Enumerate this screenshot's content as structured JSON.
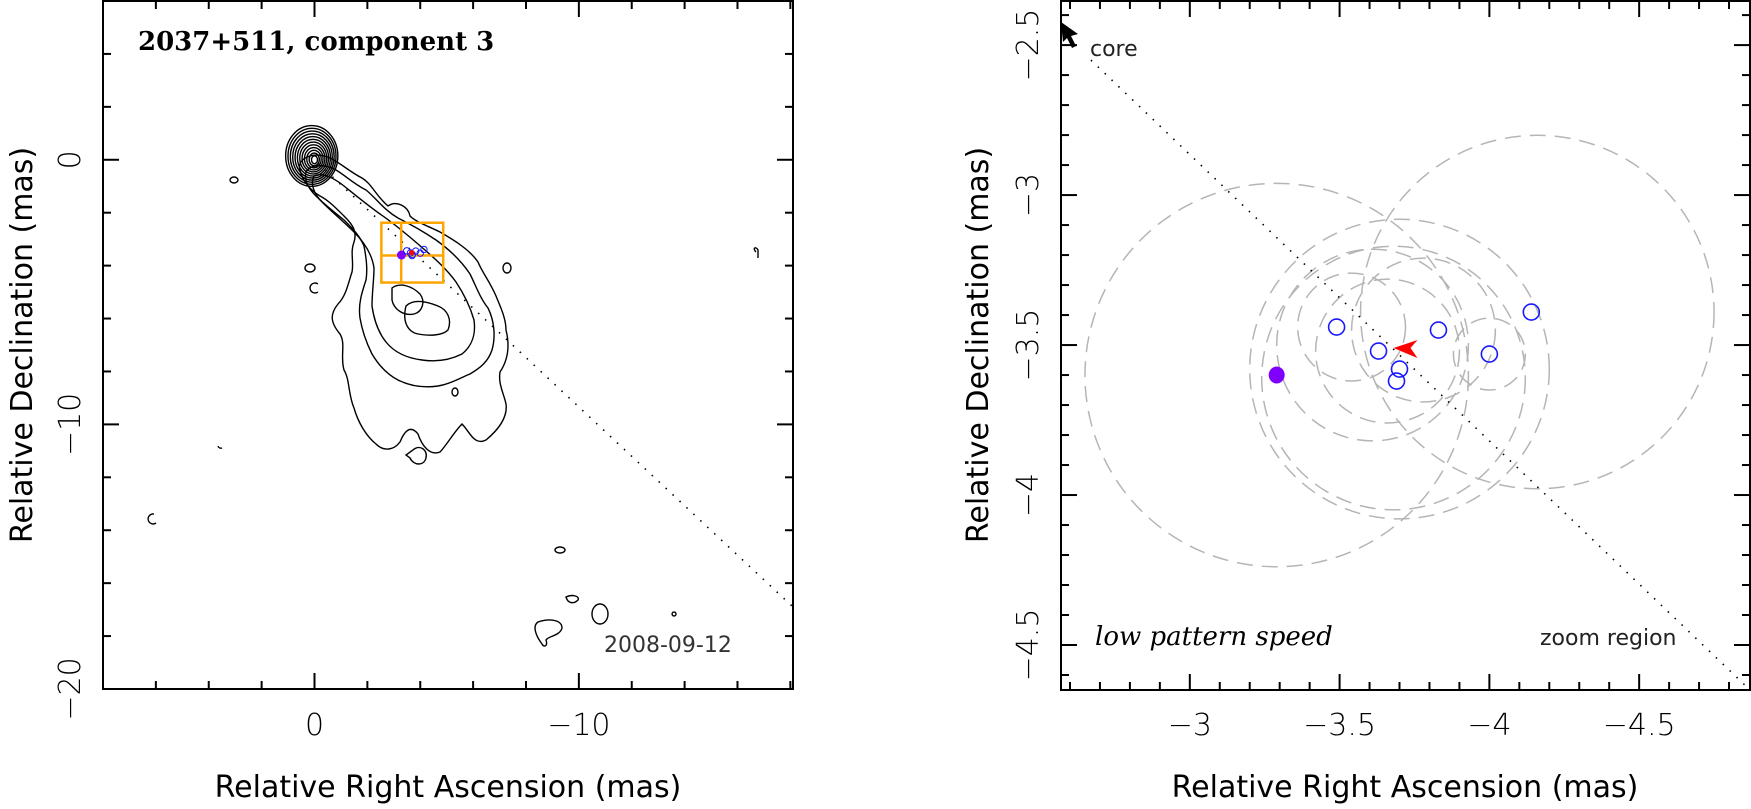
{
  "chart_data": [
    {
      "type": "scatter",
      "panel": "left",
      "title": "2037+511, component 3",
      "annotation": "2008-09-12",
      "xlabel": "Relative Right Ascension (mas)",
      "ylabel": "Relative Declination (mas)",
      "xlim": [
        8.0,
        -18.1
      ],
      "ylim": [
        6.0,
        -20.0
      ],
      "x_ticks": [
        {
          "value": 0,
          "label": "0"
        },
        {
          "value": -10,
          "label": "−10"
        }
      ],
      "y_ticks": [
        {
          "value": 0,
          "label": "0"
        },
        {
          "value": -10,
          "label": "−10"
        },
        {
          "value": -20,
          "label": "−20"
        }
      ],
      "x_minor_step": 2,
      "y_minor_step": 2,
      "core_position": [
        0,
        0
      ],
      "core_contour_levels": 12,
      "zoom_box": {
        "ra": [
          -2.53,
          -4.87
        ],
        "dec": [
          -2.38,
          -4.64
        ],
        "cross_ra": -3.28,
        "cross_dec": -3.62,
        "color": "#ffa500"
      },
      "jet_direction_line": {
        "from": [
          0,
          0
        ],
        "to": [
          -18.1,
          -16.9
        ]
      },
      "components": [
        {
          "ra": -3.49,
          "dec": -3.44
        },
        {
          "ra": -3.83,
          "dec": -3.45
        },
        {
          "ra": -4.14,
          "dec": -3.39
        },
        {
          "ra": -3.63,
          "dec": -3.52
        },
        {
          "ra": -4.0,
          "dec": -3.53
        },
        {
          "ra": -3.7,
          "dec": -3.58
        },
        {
          "ra": -3.69,
          "dec": -3.62
        }
      ],
      "reference_point": {
        "ra": -3.29,
        "dec": -3.6
      },
      "pattern_arrow": {
        "ra": -3.68,
        "dec": -3.51
      }
    },
    {
      "type": "scatter",
      "panel": "right",
      "xlabel": "Relative Right Ascension (mas)",
      "ylabel": "Relative Declination (mas)",
      "xlim": [
        -2.57,
        -4.87
      ],
      "ylim": [
        -2.353,
        -4.65
      ],
      "x_ticks": [
        {
          "value": -3,
          "label": "−3"
        },
        {
          "value": -3.5,
          "label": "−3.5"
        },
        {
          "value": -4,
          "label": "−4"
        },
        {
          "value": -4.5,
          "label": "−4.5"
        }
      ],
      "y_ticks": [
        {
          "value": -2.5,
          "label": "−2.5"
        },
        {
          "value": -3,
          "label": "−3"
        },
        {
          "value": -3.5,
          "label": "−3.5"
        },
        {
          "value": -4,
          "label": "−4"
        },
        {
          "value": -4.5,
          "label": "−4.5"
        }
      ],
      "x_minor_step": 0.1,
      "y_minor_step": 0.1,
      "labels": {
        "core": "core",
        "speed": "low pattern speed",
        "region": "zoom region"
      },
      "components": [
        {
          "ra": -3.49,
          "dec": -3.44
        },
        {
          "ra": -3.83,
          "dec": -3.45
        },
        {
          "ra": -4.14,
          "dec": -3.39
        },
        {
          "ra": -3.63,
          "dec": -3.52
        },
        {
          "ra": -4.0,
          "dec": -3.53
        },
        {
          "ra": -3.7,
          "dec": -3.58
        },
        {
          "ra": -3.69,
          "dec": -3.62
        }
      ],
      "component_color": "#1a1aff",
      "reference_point": {
        "ra": -3.29,
        "dec": -3.6,
        "color": "#8000ff"
      },
      "pattern_arrow": {
        "ra": -3.68,
        "dec": -3.51,
        "color": "#ff0000"
      },
      "uncertainty_circles": [
        {
          "ra": -3.29,
          "dec": -3.6,
          "r": 0.64
        },
        {
          "ra": -4.16,
          "dec": -3.39,
          "r": 0.59
        },
        {
          "ra": -3.7,
          "dec": -3.58,
          "r": 0.5
        },
        {
          "ra": -3.68,
          "dec": -3.61,
          "r": 0.44
        },
        {
          "ra": -3.61,
          "dec": -3.5,
          "r": 0.32
        },
        {
          "ra": -3.66,
          "dec": -3.52,
          "r": 0.24
        },
        {
          "ra": -3.78,
          "dec": -3.45,
          "r": 0.24
        },
        {
          "ra": -3.54,
          "dec": -3.44,
          "r": 0.18
        },
        {
          "ra": -4.0,
          "dec": -3.53,
          "r": 0.12
        }
      ],
      "jet_direction_line": {
        "from": [
          -2.67,
          -2.55
        ],
        "to": [
          -4.87,
          -4.65
        ]
      }
    }
  ]
}
